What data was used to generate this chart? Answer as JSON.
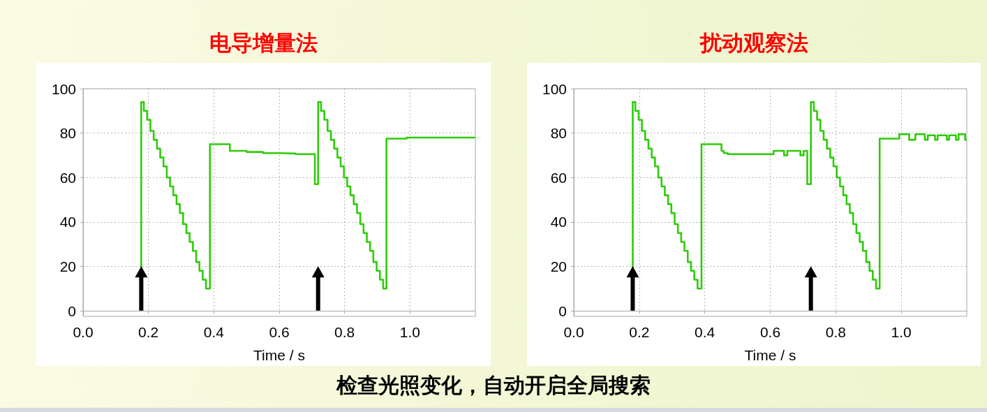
{
  "chart_data": [
    {
      "type": "step",
      "title": "电导增量法",
      "xlabel": "Time / s",
      "color": "#2ecc0a",
      "marker": "none",
      "grid": true,
      "xlim": [
        0,
        1.2
      ],
      "ylim": [
        -2.5,
        100
      ],
      "xticks": [
        {
          "value": 0,
          "label": "0.0"
        },
        {
          "value": 0.2,
          "label": "0.2"
        },
        {
          "value": 0.4,
          "label": "0.4"
        },
        {
          "value": 0.6,
          "label": "0.6"
        },
        {
          "value": 0.8,
          "label": "0.8"
        },
        {
          "value": 1.0,
          "label": "1.0"
        }
      ],
      "yticks": [
        0,
        20,
        40,
        60,
        80,
        100
      ],
      "x": [
        0.178,
        0.178,
        0.186,
        0.196,
        0.206,
        0.216,
        0.226,
        0.236,
        0.246,
        0.256,
        0.266,
        0.276,
        0.286,
        0.296,
        0.306,
        0.316,
        0.326,
        0.336,
        0.346,
        0.356,
        0.366,
        0.376,
        0.388,
        0.449,
        0.5,
        0.55,
        0.6,
        0.65,
        0.709,
        0.719,
        0.728,
        0.738,
        0.748,
        0.758,
        0.768,
        0.778,
        0.788,
        0.798,
        0.808,
        0.818,
        0.828,
        0.838,
        0.848,
        0.858,
        0.868,
        0.878,
        0.888,
        0.898,
        0.908,
        0.918,
        0.928,
        0.99,
        1.2
      ],
      "values": [
        0,
        94,
        90,
        86,
        81,
        77,
        73,
        69,
        65,
        60,
        56,
        52,
        48,
        44,
        39,
        35,
        31,
        27,
        22,
        18,
        14,
        10,
        75,
        72,
        71.5,
        71,
        70.8,
        70.5,
        57,
        94,
        90,
        86,
        81,
        77,
        73,
        69,
        65,
        60,
        56,
        52,
        48,
        44,
        39,
        35,
        31,
        27,
        22,
        18,
        14,
        10,
        77.5,
        78,
        78
      ]
    },
    {
      "type": "step",
      "title": "扰动观察法",
      "xlabel": "Time / s",
      "color": "#2ecc0a",
      "marker": "none",
      "grid": true,
      "xlim": [
        0,
        1.2
      ],
      "ylim": [
        -2.5,
        100
      ],
      "xticks": [
        {
          "value": 0,
          "label": "0.0"
        },
        {
          "value": 0.2,
          "label": "0.2"
        },
        {
          "value": 0.4,
          "label": "0.4"
        },
        {
          "value": 0.6,
          "label": "0.6"
        },
        {
          "value": 0.8,
          "label": "0.8"
        },
        {
          "value": 1.0,
          "label": "1.0"
        }
      ],
      "yticks": [
        0,
        20,
        40,
        60,
        80,
        100
      ],
      "annotations": [
        "检查光照变化，自动开启全局搜索"
      ],
      "x": [
        0.18,
        0.18,
        0.188,
        0.198,
        0.208,
        0.218,
        0.228,
        0.238,
        0.248,
        0.258,
        0.268,
        0.278,
        0.288,
        0.298,
        0.308,
        0.318,
        0.328,
        0.338,
        0.348,
        0.358,
        0.368,
        0.378,
        0.39,
        0.451,
        0.458,
        0.47,
        0.61,
        0.642,
        0.652,
        0.692,
        0.702,
        0.713,
        0.724,
        0.733,
        0.743,
        0.753,
        0.763,
        0.773,
        0.783,
        0.793,
        0.803,
        0.813,
        0.823,
        0.833,
        0.843,
        0.853,
        0.863,
        0.873,
        0.883,
        0.893,
        0.903,
        0.913,
        0.923,
        0.934,
        0.994,
        1.024,
        1.043,
        1.072,
        1.081,
        1.103,
        1.111,
        1.139,
        1.146,
        1.167,
        1.175,
        1.195,
        1.2
      ],
      "values": [
        0,
        94,
        90,
        86,
        81,
        77,
        73,
        69,
        65,
        60,
        56,
        52,
        48,
        44,
        39,
        35,
        31,
        27,
        22,
        18,
        14,
        10,
        75,
        72,
        71,
        70.5,
        72,
        70,
        72,
        70,
        72,
        57,
        94,
        90,
        86,
        81,
        77,
        73,
        69,
        65,
        60,
        56,
        52,
        48,
        44,
        39,
        35,
        31,
        27,
        22,
        18,
        14,
        10,
        77.5,
        79.5,
        77,
        79.5,
        77,
        79,
        77,
        79,
        77,
        79,
        77,
        79.5,
        77,
        77
      ]
    }
  ]
}
